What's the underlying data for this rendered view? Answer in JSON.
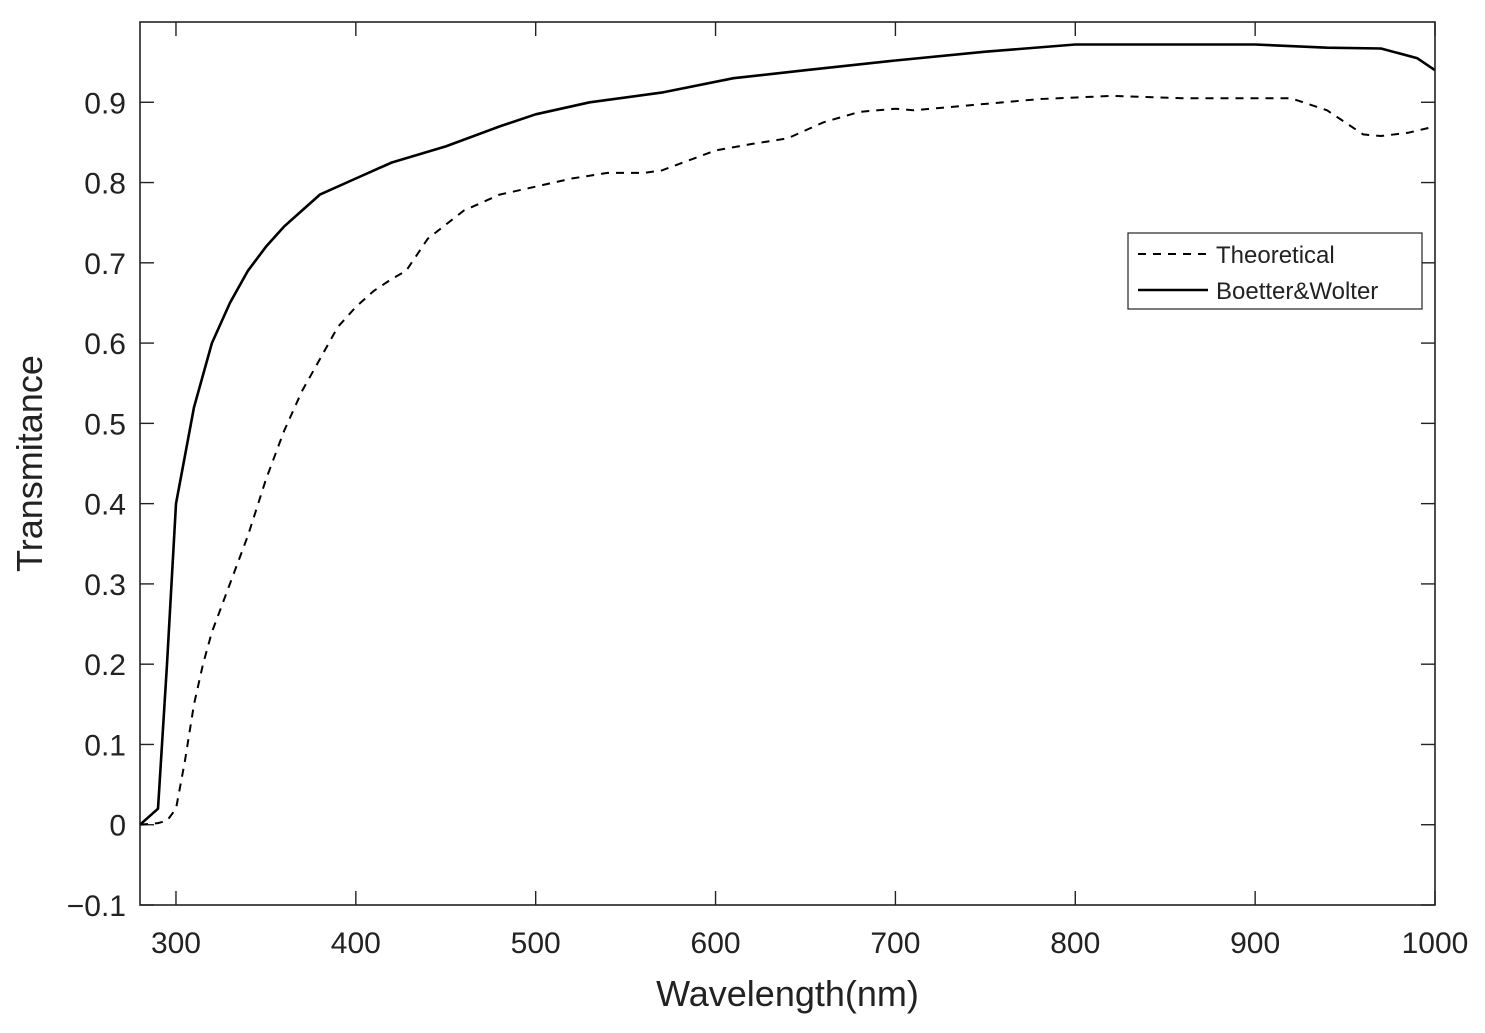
{
  "chart_data": {
    "type": "line",
    "title": "",
    "xlabel": "Wavelength(nm)",
    "ylabel": "Transmitance",
    "xlim": [
      280,
      1000
    ],
    "ylim": [
      -0.1,
      1.0
    ],
    "xticks": [
      300,
      400,
      500,
      600,
      700,
      800,
      900,
      1000
    ],
    "yticks": [
      -0.1,
      0,
      0.1,
      0.2,
      0.3,
      0.4,
      0.5,
      0.6,
      0.7,
      0.8,
      0.9
    ],
    "xtick_labels": [
      "300",
      "400",
      "500",
      "600",
      "700",
      "800",
      "900",
      "1000"
    ],
    "ytick_labels": [
      "−0.1",
      "0",
      "0.1",
      "0.2",
      "0.3",
      "0.4",
      "0.5",
      "0.6",
      "0.7",
      "0.8",
      "0.9"
    ],
    "grid": false,
    "legend_position": "upper-right",
    "series": [
      {
        "name": "Theoretical",
        "style": "dashed",
        "color": "#000000",
        "x": [
          280,
          290,
          295,
          300,
          305,
          310,
          315,
          320,
          330,
          340,
          350,
          360,
          370,
          380,
          390,
          400,
          410,
          420,
          428,
          440,
          460,
          480,
          500,
          520,
          540,
          560,
          570,
          600,
          620,
          640,
          660,
          680,
          700,
          710,
          740,
          780,
          820,
          860,
          900,
          920,
          940,
          960,
          970,
          985,
          1000
        ],
        "y": [
          0.0,
          0.002,
          0.005,
          0.02,
          0.08,
          0.15,
          0.2,
          0.24,
          0.3,
          0.36,
          0.43,
          0.49,
          0.54,
          0.58,
          0.62,
          0.645,
          0.665,
          0.68,
          0.69,
          0.73,
          0.765,
          0.785,
          0.795,
          0.805,
          0.812,
          0.812,
          0.815,
          0.84,
          0.848,
          0.855,
          0.875,
          0.888,
          0.892,
          0.89,
          0.896,
          0.904,
          0.908,
          0.905,
          0.905,
          0.905,
          0.89,
          0.86,
          0.858,
          0.862,
          0.87
        ]
      },
      {
        "name": "Boetter&Wolter",
        "style": "solid",
        "color": "#000000",
        "x": [
          280,
          290,
          295,
          300,
          305,
          310,
          320,
          330,
          340,
          350,
          360,
          370,
          380,
          400,
          420,
          450,
          480,
          500,
          530,
          570,
          610,
          650,
          700,
          750,
          800,
          850,
          900,
          940,
          970,
          990,
          1000
        ],
        "y": [
          0.0,
          0.02,
          0.2,
          0.4,
          0.46,
          0.52,
          0.6,
          0.65,
          0.69,
          0.72,
          0.745,
          0.765,
          0.785,
          0.805,
          0.825,
          0.845,
          0.87,
          0.885,
          0.9,
          0.912,
          0.93,
          0.94,
          0.952,
          0.963,
          0.972,
          0.972,
          0.972,
          0.968,
          0.967,
          0.955,
          0.94
        ]
      }
    ]
  }
}
